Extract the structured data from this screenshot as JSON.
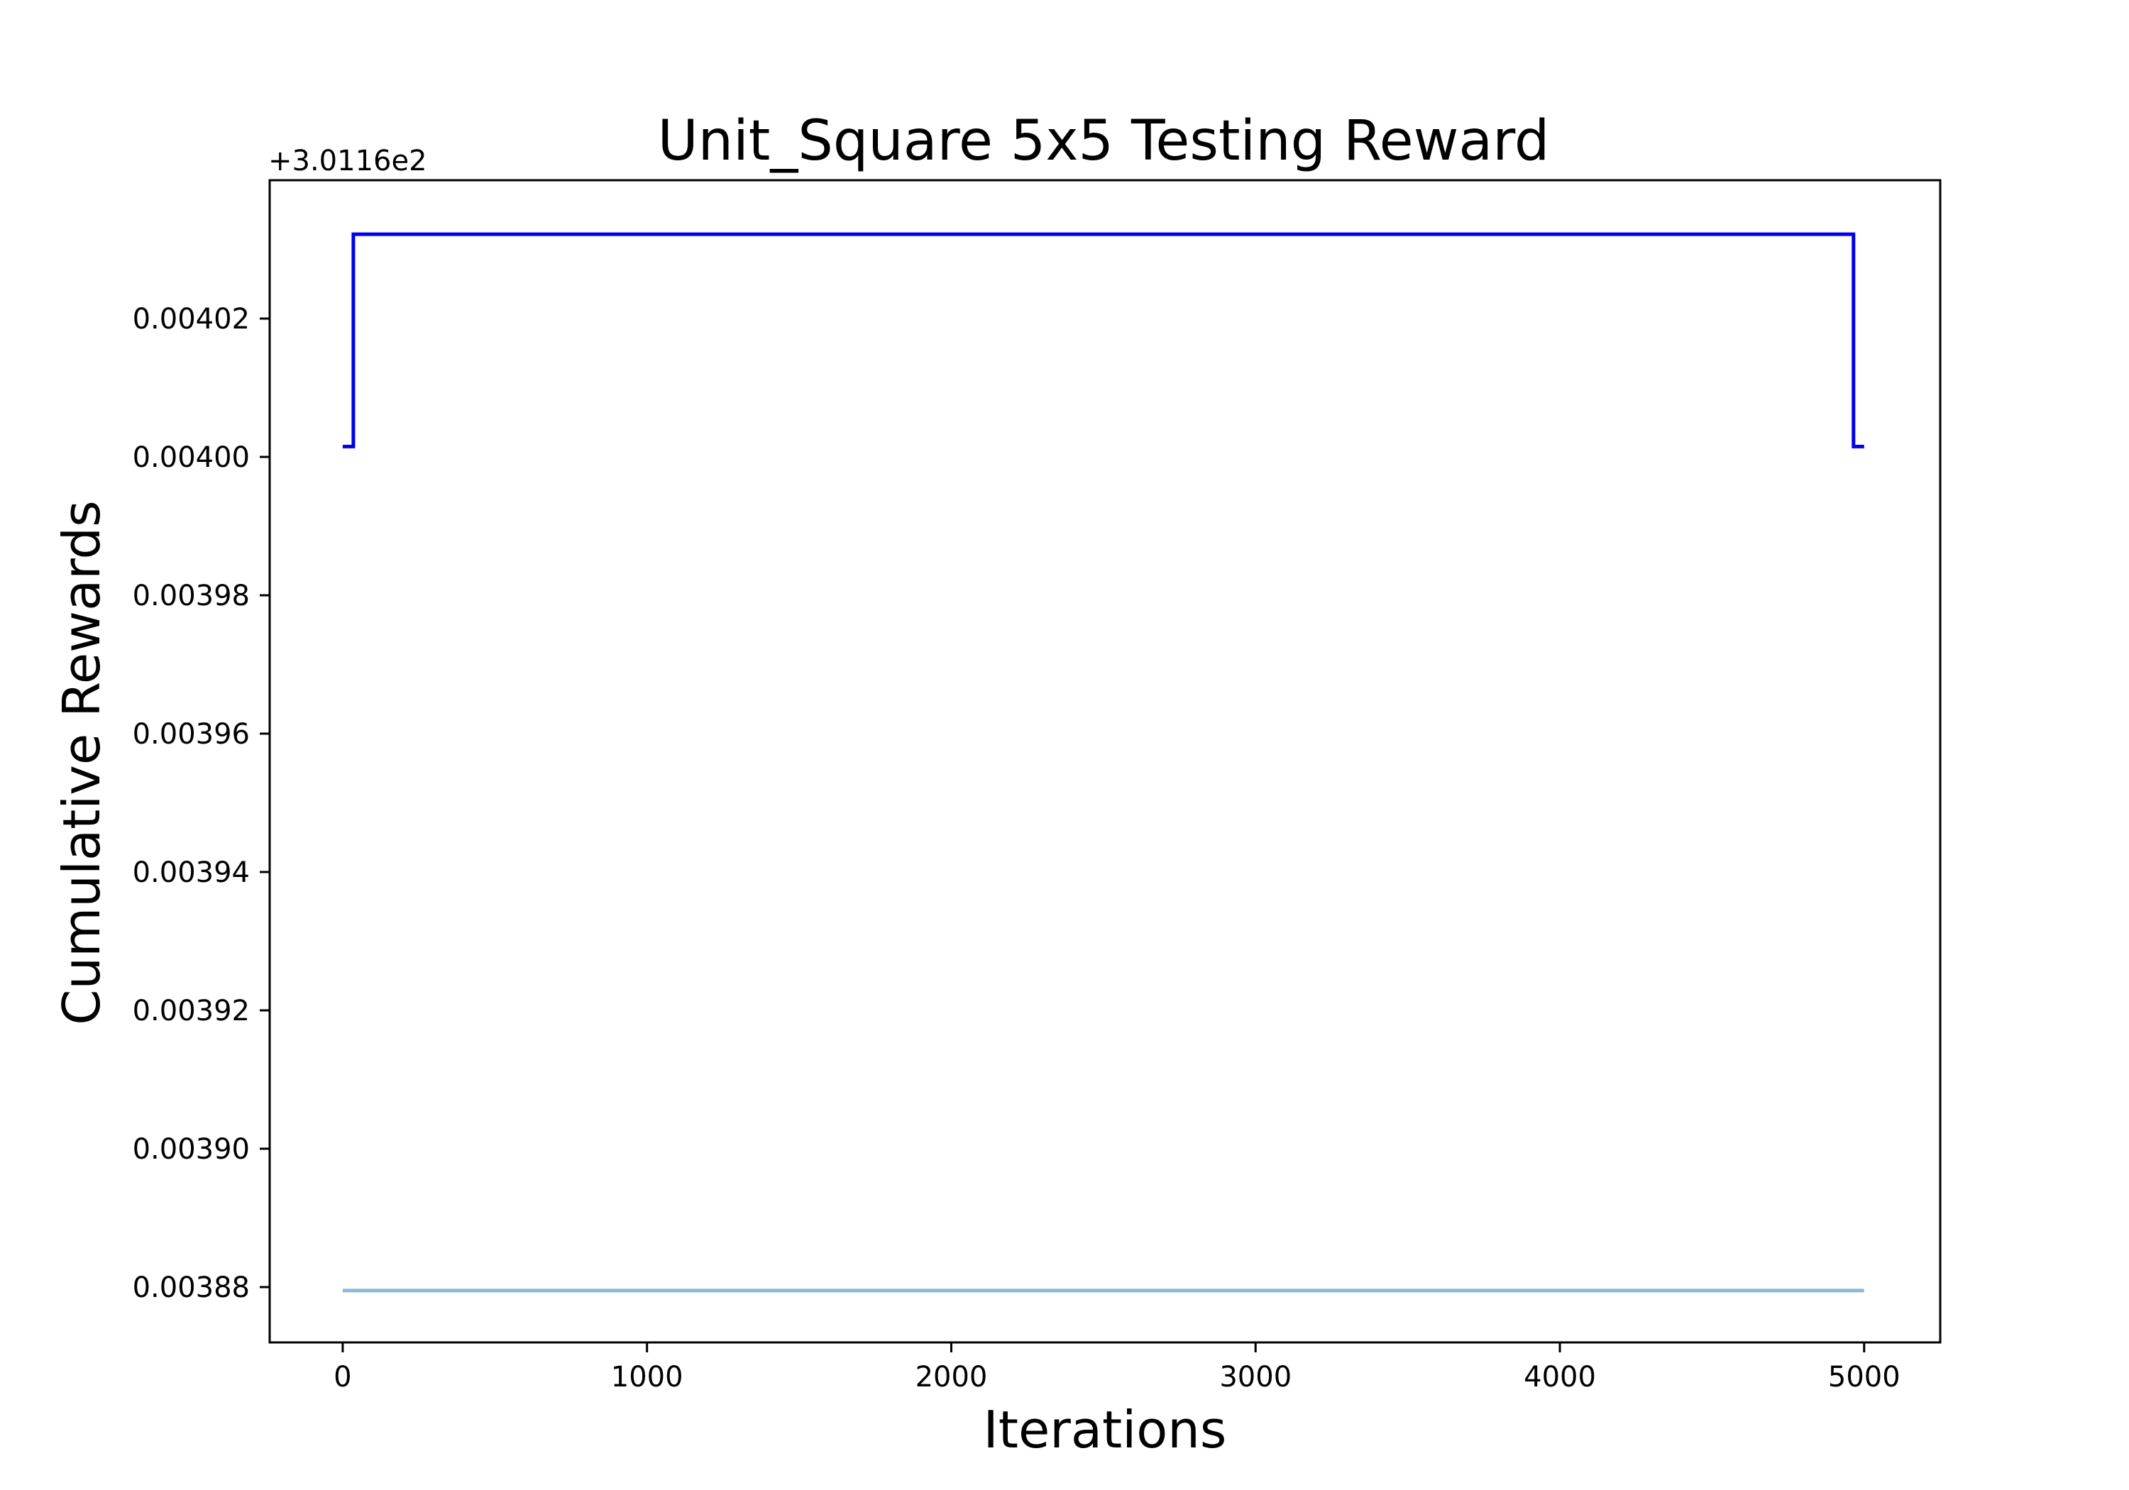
{
  "chart_data": {
    "type": "line",
    "title": "Unit_Square 5x5 Testing Reward",
    "xlabel": "Iterations",
    "ylabel": "Cumulative Rewards",
    "y_offset_label": "+3.0116e2",
    "y_offset": 301.16,
    "xlim": [
      -240,
      5250
    ],
    "ylim": [
      0.003872,
      0.00404
    ],
    "x_ticks": [
      0,
      1000,
      2000,
      3000,
      4000,
      5000
    ],
    "x_tick_labels": [
      "0",
      "1000",
      "2000",
      "3000",
      "4000",
      "5000"
    ],
    "y_ticks": [
      0.00388,
      0.0039,
      0.00392,
      0.00394,
      0.00396,
      0.00398,
      0.004,
      0.00402
    ],
    "y_tick_labels": [
      "0.00388",
      "0.00390",
      "0.00392",
      "0.00394",
      "0.00396",
      "0.00398",
      "0.00400",
      "0.00402"
    ],
    "grid": false,
    "series": [
      {
        "color": "#0000ee",
        "step": true,
        "x": [
          0,
          35,
          35,
          4965,
          4965,
          5000
        ],
        "y": [
          0.0040015,
          0.0040015,
          0.0040322,
          0.0040322,
          0.0040015,
          0.0040015
        ]
      },
      {
        "color": "#8fb7d4",
        "step": false,
        "x": [
          0,
          5000
        ],
        "y": [
          0.0038795,
          0.0038795
        ]
      }
    ]
  }
}
